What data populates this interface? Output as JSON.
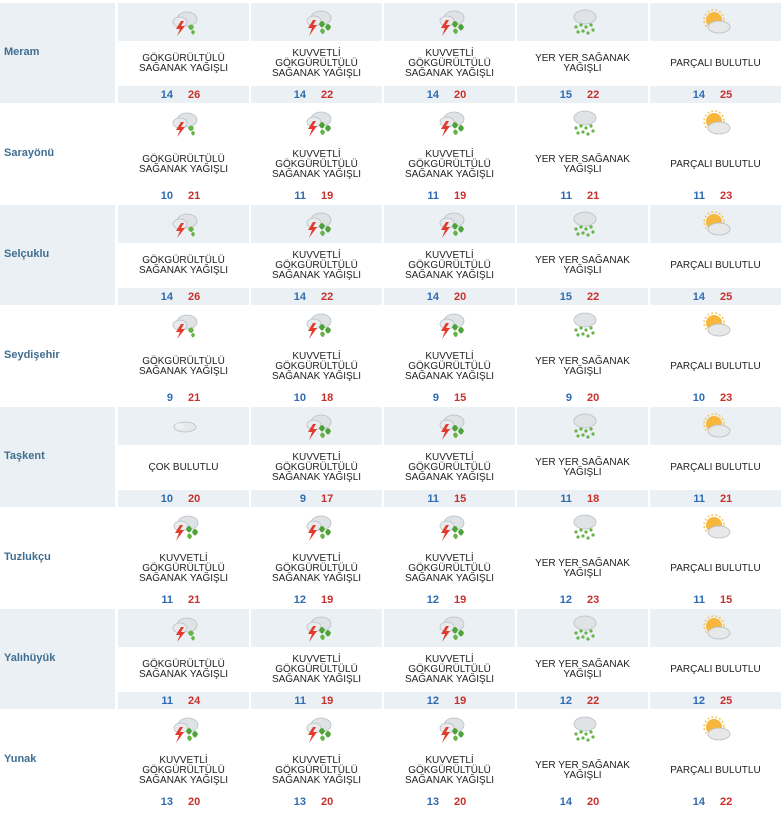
{
  "conditions": {
    "thunder": "GÖKGÜRÜLTÜLÜ\nSAĞANAK YAĞIŞLI",
    "strong_thunder": "KUVVETLİ\nGÖKGÜRÜLTÜLÜ\nSAĞANAK YAĞIŞLI",
    "showers": "YER YER SAĞANAK\nYAĞIŞLI",
    "partly": "PARÇALI BULUTLU",
    "cloudy": "ÇOK BULUTLU"
  },
  "colors": {
    "row_shade": "#eaf0f4",
    "district": "#3f6e92",
    "min": "#2e6bb3",
    "max": "#c9302c"
  },
  "rows": [
    {
      "district": "Meram",
      "days": [
        {
          "icon": "thunder-icon",
          "desc": "GÖKGÜRÜLTÜLÜ\nSAĞANAK YAĞIŞLI",
          "min": "14",
          "max": "26"
        },
        {
          "icon": "strong-thunder-icon",
          "desc": "KUVVETLİ\nGÖKGÜRÜLTÜLÜ\nSAĞANAK YAĞIŞLI",
          "min": "14",
          "max": "22"
        },
        {
          "icon": "strong-thunder-icon",
          "desc": "KUVVETLİ\nGÖKGÜRÜLTÜLÜ\nSAĞANAK YAĞIŞLI",
          "min": "14",
          "max": "20"
        },
        {
          "icon": "showers-icon",
          "desc": "YER YER SAĞANAK\nYAĞIŞLI",
          "min": "15",
          "max": "22"
        },
        {
          "icon": "partly-cloudy-icon",
          "desc": "PARÇALI BULUTLU",
          "min": "14",
          "max": "25"
        }
      ]
    },
    {
      "district": "Sarayönü",
      "days": [
        {
          "icon": "thunder-icon",
          "desc": "GÖKGÜRÜLTÜLÜ\nSAĞANAK YAĞIŞLI",
          "min": "10",
          "max": "21"
        },
        {
          "icon": "strong-thunder-icon",
          "desc": "KUVVETLİ\nGÖKGÜRÜLTÜLÜ\nSAĞANAK YAĞIŞLI",
          "min": "11",
          "max": "19"
        },
        {
          "icon": "strong-thunder-icon",
          "desc": "KUVVETLİ\nGÖKGÜRÜLTÜLÜ\nSAĞANAK YAĞIŞLI",
          "min": "11",
          "max": "19"
        },
        {
          "icon": "showers-icon",
          "desc": "YER YER SAĞANAK\nYAĞIŞLI",
          "min": "11",
          "max": "21"
        },
        {
          "icon": "partly-cloudy-icon",
          "desc": "PARÇALI BULUTLU",
          "min": "11",
          "max": "23"
        }
      ]
    },
    {
      "district": "Selçuklu",
      "days": [
        {
          "icon": "thunder-icon",
          "desc": "GÖKGÜRÜLTÜLÜ\nSAĞANAK YAĞIŞLI",
          "min": "14",
          "max": "26"
        },
        {
          "icon": "strong-thunder-icon",
          "desc": "KUVVETLİ\nGÖKGÜRÜLTÜLÜ\nSAĞANAK YAĞIŞLI",
          "min": "14",
          "max": "22"
        },
        {
          "icon": "strong-thunder-icon",
          "desc": "KUVVETLİ\nGÖKGÜRÜLTÜLÜ\nSAĞANAK YAĞIŞLI",
          "min": "14",
          "max": "20"
        },
        {
          "icon": "showers-icon",
          "desc": "YER YER SAĞANAK\nYAĞIŞLI",
          "min": "15",
          "max": "22"
        },
        {
          "icon": "partly-cloudy-icon",
          "desc": "PARÇALI BULUTLU",
          "min": "14",
          "max": "25"
        }
      ]
    },
    {
      "district": "Seydişehir",
      "days": [
        {
          "icon": "thunder-icon",
          "desc": "GÖKGÜRÜLTÜLÜ\nSAĞANAK YAĞIŞLI",
          "min": "9",
          "max": "21"
        },
        {
          "icon": "strong-thunder-icon",
          "desc": "KUVVETLİ\nGÖKGÜRÜLTÜLÜ\nSAĞANAK YAĞIŞLI",
          "min": "10",
          "max": "18"
        },
        {
          "icon": "strong-thunder-icon",
          "desc": "KUVVETLİ\nGÖKGÜRÜLTÜLÜ\nSAĞANAK YAĞIŞLI",
          "min": "9",
          "max": "15"
        },
        {
          "icon": "showers-icon",
          "desc": "YER YER SAĞANAK\nYAĞIŞLI",
          "min": "9",
          "max": "20"
        },
        {
          "icon": "partly-cloudy-icon",
          "desc": "PARÇALI BULUTLU",
          "min": "10",
          "max": "23"
        }
      ]
    },
    {
      "district": "Taşkent",
      "days": [
        {
          "icon": "cloudy-icon",
          "desc": "ÇOK BULUTLU",
          "min": "10",
          "max": "20"
        },
        {
          "icon": "strong-thunder-icon",
          "desc": "KUVVETLİ\nGÖKGÜRÜLTÜLÜ\nSAĞANAK YAĞIŞLI",
          "min": "9",
          "max": "17"
        },
        {
          "icon": "strong-thunder-icon",
          "desc": "KUVVETLİ\nGÖKGÜRÜLTÜLÜ\nSAĞANAK YAĞIŞLI",
          "min": "11",
          "max": "15"
        },
        {
          "icon": "showers-icon",
          "desc": "YER YER SAĞANAK\nYAĞIŞLI",
          "min": "11",
          "max": "18"
        },
        {
          "icon": "partly-cloudy-icon",
          "desc": "PARÇALI BULUTLU",
          "min": "11",
          "max": "21"
        }
      ]
    },
    {
      "district": "Tuzlukçu",
      "days": [
        {
          "icon": "strong-thunder-icon",
          "desc": "KUVVETLİ\nGÖKGÜRÜLTÜLÜ\nSAĞANAK YAĞIŞLI",
          "min": "11",
          "max": "21"
        },
        {
          "icon": "strong-thunder-icon",
          "desc": "KUVVETLİ\nGÖKGÜRÜLTÜLÜ\nSAĞANAK YAĞIŞLI",
          "min": "12",
          "max": "19"
        },
        {
          "icon": "strong-thunder-icon",
          "desc": "KUVVETLİ\nGÖKGÜRÜLTÜLÜ\nSAĞANAK YAĞIŞLI",
          "min": "12",
          "max": "19"
        },
        {
          "icon": "showers-icon",
          "desc": "YER YER SAĞANAK\nYAĞIŞLI",
          "min": "12",
          "max": "23"
        },
        {
          "icon": "partly-cloudy-icon",
          "desc": "PARÇALI BULUTLU",
          "min": "11",
          "max": "15"
        }
      ]
    },
    {
      "district": "Yalıhüyük",
      "days": [
        {
          "icon": "thunder-icon",
          "desc": "GÖKGÜRÜLTÜLÜ\nSAĞANAK YAĞIŞLI",
          "min": "11",
          "max": "24"
        },
        {
          "icon": "strong-thunder-icon",
          "desc": "KUVVETLİ\nGÖKGÜRÜLTÜLÜ\nSAĞANAK YAĞIŞLI",
          "min": "11",
          "max": "19"
        },
        {
          "icon": "strong-thunder-icon",
          "desc": "KUVVETLİ\nGÖKGÜRÜLTÜLÜ\nSAĞANAK YAĞIŞLI",
          "min": "12",
          "max": "19"
        },
        {
          "icon": "showers-icon",
          "desc": "YER YER SAĞANAK\nYAĞIŞLI",
          "min": "12",
          "max": "22"
        },
        {
          "icon": "partly-cloudy-icon",
          "desc": "PARÇALI BULUTLU",
          "min": "12",
          "max": "25"
        }
      ]
    },
    {
      "district": "Yunak",
      "days": [
        {
          "icon": "strong-thunder-icon",
          "desc": "KUVVETLİ\nGÖKGÜRÜLTÜLÜ\nSAĞANAK YAĞIŞLI",
          "min": "13",
          "max": "20"
        },
        {
          "icon": "strong-thunder-icon",
          "desc": "KUVVETLİ\nGÖKGÜRÜLTÜLÜ\nSAĞANAK YAĞIŞLI",
          "min": "13",
          "max": "20"
        },
        {
          "icon": "strong-thunder-icon",
          "desc": "KUVVETLİ\nGÖKGÜRÜLTÜLÜ\nSAĞANAK YAĞIŞLI",
          "min": "13",
          "max": "20"
        },
        {
          "icon": "showers-icon",
          "desc": "YER YER SAĞANAK\nYAĞIŞLI",
          "min": "14",
          "max": "20"
        },
        {
          "icon": "partly-cloudy-icon",
          "desc": "PARÇALI BULUTLU",
          "min": "14",
          "max": "22"
        }
      ]
    }
  ]
}
